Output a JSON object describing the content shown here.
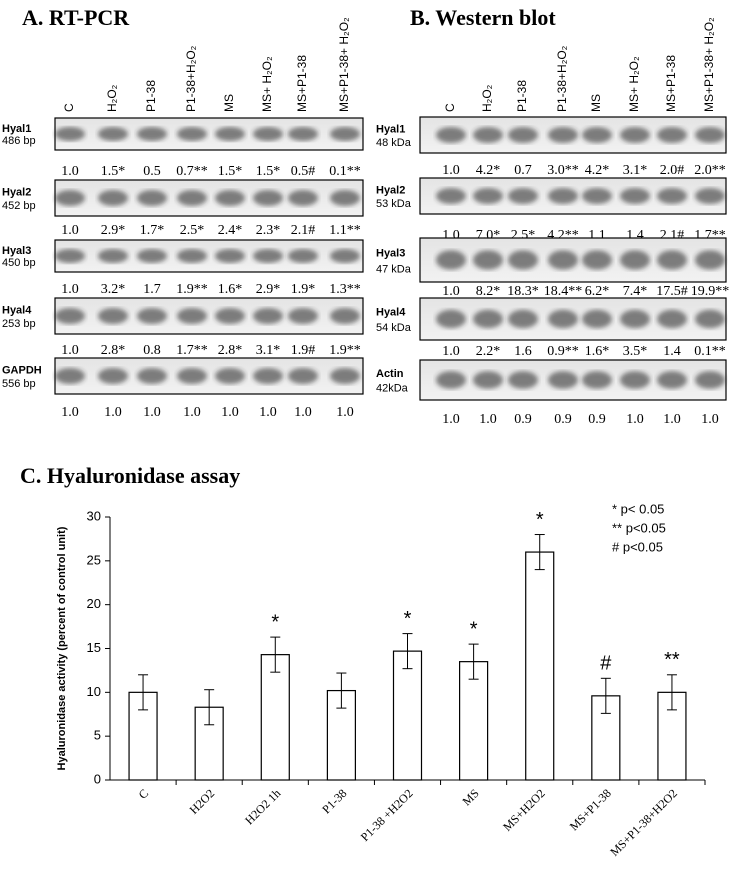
{
  "panel_a": {
    "title": "A. RT-PCR",
    "lanes": [
      "C",
      "H₂O₂",
      "P1-38",
      "P1-38+H₂O₂",
      "MS",
      "MS+ H₂O₂",
      "MS+P1-38",
      "MS+P1-38+ H₂O₂"
    ],
    "rows": [
      {
        "name": "Hyal1",
        "size": "486 bp",
        "values": [
          "1.0",
          "1.5*",
          "0.5",
          "0.7**",
          "1.5*",
          "1.5*",
          "0.5#",
          "0.1**"
        ]
      },
      {
        "name": "Hyal2",
        "size": "452 bp",
        "values": [
          "1.0",
          "2.9*",
          "1.7*",
          "2.5*",
          "2.4*",
          "2.3*",
          "2.1#",
          "1.1**"
        ]
      },
      {
        "name": "Hyal3",
        "size": "450 bp",
        "values": [
          "1.0",
          "3.2*",
          "1.7",
          "1.9**",
          "1.6*",
          "2.9*",
          "1.9*",
          "1.3**"
        ]
      },
      {
        "name": "Hyal4",
        "size": "253 bp",
        "values": [
          "1.0",
          "2.8*",
          "0.8",
          "1.7**",
          "2.8*",
          "3.1*",
          "1.9#",
          "1.9**"
        ]
      },
      {
        "name": "GAPDH",
        "size": "556 bp",
        "values": [
          "1.0",
          "1.0",
          "1.0",
          "1.0",
          "1.0",
          "1.0",
          "1.0",
          "1.0"
        ]
      }
    ]
  },
  "panel_b": {
    "title": "B. Western blot",
    "lanes": [
      "C",
      "H₂O₂",
      "P1-38",
      "P1-38+H₂O₂",
      "MS",
      "MS+ H₂O₂",
      "MS+P1-38",
      "MS+P1-38+ H₂O₂"
    ],
    "rows": [
      {
        "name": "Hyal1",
        "size": "48 kDa",
        "values": [
          "1.0",
          "4.2*",
          "0.7",
          "3.0**",
          "4.2*",
          "3.1*",
          "2.0#",
          "2.0**"
        ]
      },
      {
        "name": "Hyal2",
        "size": "53 kDa",
        "values": [
          "1.0",
          "7.0*",
          "2.5*",
          "4.2**",
          "1.1",
          "1.4",
          "2.1#",
          "1.7**"
        ]
      },
      {
        "name": "Hyal3",
        "size": "47 kDa",
        "values": [
          "1.0",
          "8.2*",
          "18.3*",
          "18.4**",
          "6.2*",
          "7.4*",
          "17.5#",
          "19.9**"
        ]
      },
      {
        "name": "Hyal4",
        "size": "54 kDa",
        "values": [
          "1.0",
          "2.2*",
          "1.6",
          "0.9**",
          "1.6*",
          "3.5*",
          "1.4",
          "0.1**"
        ]
      },
      {
        "name": "Actin",
        "size": "42kDa",
        "values": [
          "1.0",
          "1.0",
          "0.9",
          "0.9",
          "0.9",
          "1.0",
          "1.0",
          "1.0"
        ]
      }
    ]
  },
  "chart_data": {
    "type": "bar",
    "title": "C. Hyaluronidase assay",
    "y_label": "Hyaluronidase activity (percent of control unit)",
    "categories": [
      "C",
      "H2O2",
      "H2O2 1h",
      "P1-38",
      "P1-38 +H2O2",
      "MS",
      "MS+H2O2",
      "MS+P1-38",
      "MS+P1-38+H2O2"
    ],
    "values": [
      10,
      8.3,
      14.3,
      10.2,
      14.7,
      13.5,
      26,
      9.6,
      10
    ],
    "errors": [
      2,
      2,
      2,
      2,
      2,
      2,
      2,
      2,
      2
    ],
    "markers": [
      null,
      null,
      "*",
      null,
      "*",
      "*",
      "*",
      "#",
      "**"
    ],
    "notes": [
      "*  p< 0.05",
      "** p<0.05",
      "#  p<0.05"
    ],
    "color": "#ffffff",
    "ylim": [
      0,
      30
    ],
    "yticks": [
      0,
      5,
      10,
      15,
      20,
      25,
      30
    ],
    "grid": false
  }
}
